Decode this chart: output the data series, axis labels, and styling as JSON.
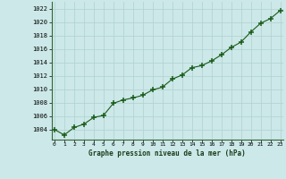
{
  "x": [
    0,
    1,
    2,
    3,
    4,
    5,
    6,
    7,
    8,
    9,
    10,
    11,
    12,
    13,
    14,
    15,
    16,
    17,
    18,
    19,
    20,
    21,
    22,
    23
  ],
  "y": [
    1004.0,
    1003.2,
    1004.3,
    1004.8,
    1005.8,
    1006.1,
    1007.9,
    1008.4,
    1008.7,
    1009.1,
    1009.9,
    1010.3,
    1011.5,
    1012.1,
    1013.2,
    1013.5,
    1014.2,
    1015.1,
    1016.2,
    1017.0,
    1018.5,
    1019.8,
    1020.5,
    1021.7
  ],
  "line_color": "#1a5c1a",
  "marker_color": "#1a5c1a",
  "bg_color": "#cce8e8",
  "grid_color": "#b0d0d0",
  "title": "Graphe pression niveau de la mer (hPa)",
  "ylim_min": 1002.5,
  "ylim_max": 1023.0,
  "ytick_min": 1004,
  "ytick_max": 1022,
  "ytick_step": 2,
  "xlim_min": -0.3,
  "xlim_max": 23.3,
  "xtick_labels": [
    "0",
    "1",
    "2",
    "3",
    "4",
    "5",
    "6",
    "7",
    "8",
    "9",
    "10",
    "11",
    "12",
    "13",
    "14",
    "15",
    "16",
    "17",
    "18",
    "19",
    "20",
    "21",
    "22",
    "23"
  ]
}
